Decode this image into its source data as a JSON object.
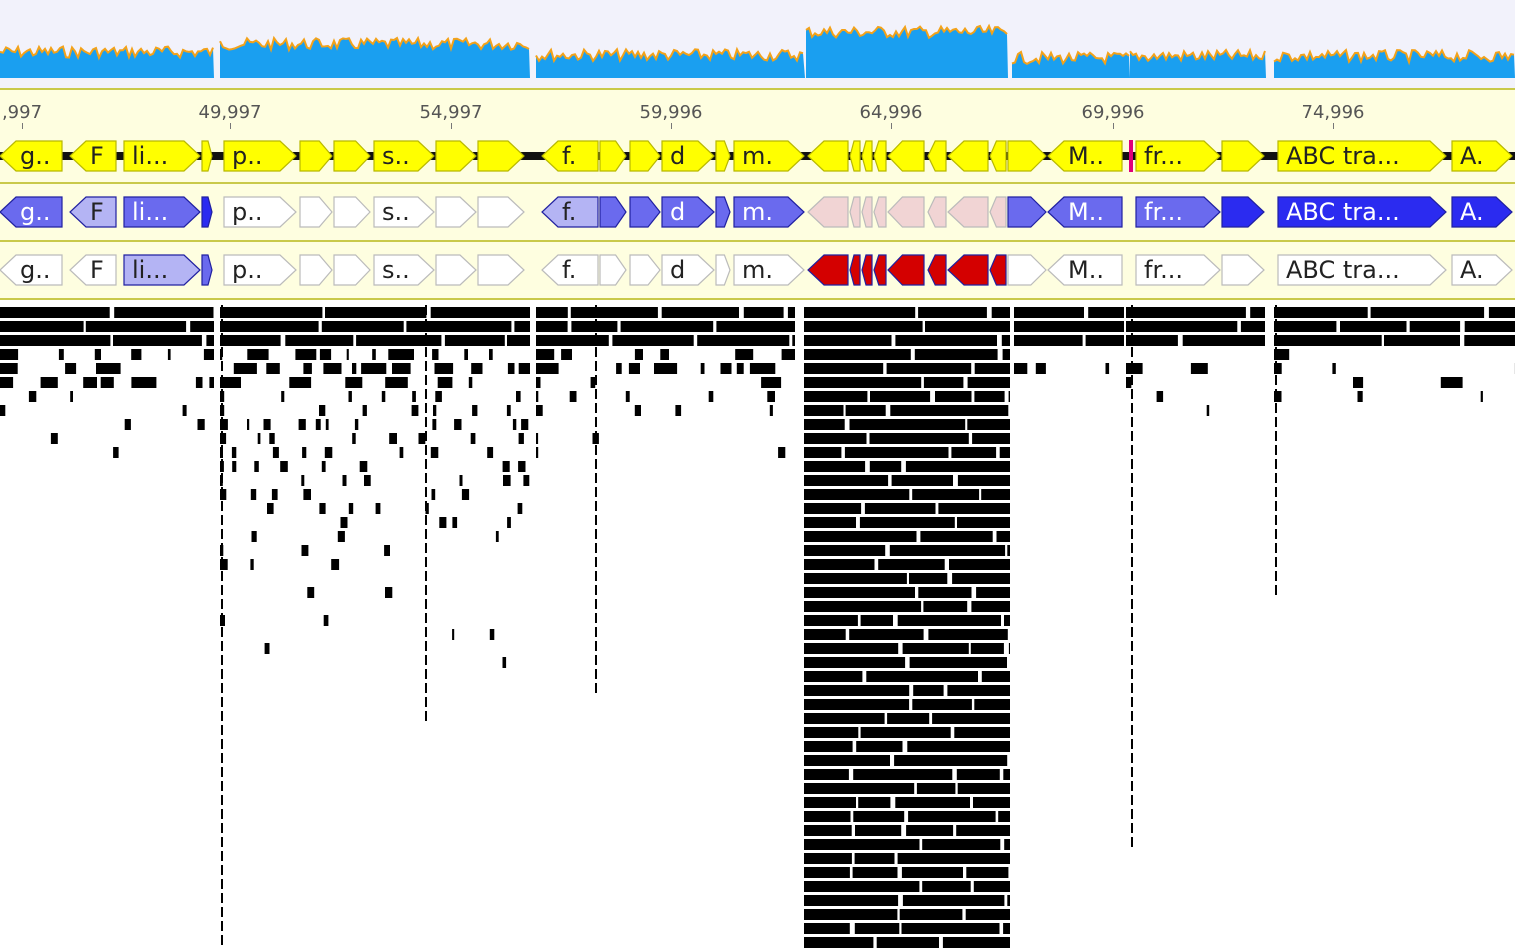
{
  "ruler": {
    "ticks": [
      {
        "label": ",997",
        "pos": 22
      },
      {
        "label": "49,997",
        "pos": 230
      },
      {
        "label": "54,997",
        "pos": 451
      },
      {
        "label": "59,996",
        "pos": 671
      },
      {
        "label": "64,996",
        "pos": 891
      },
      {
        "label": "69,996",
        "pos": 1113
      },
      {
        "label": "74,996",
        "pos": 1333
      }
    ]
  },
  "colors": {
    "coverage_fill": "#1a9ff0",
    "coverage_edge": "#f3a21a",
    "gene_yellow": "#ffff00",
    "gene_blue_dark": "#2b2bf0",
    "gene_blue_mid": "#6a6aee",
    "gene_blue_light": "#b4b4f4",
    "gene_red": "#d40000",
    "gene_pink": "#f1d4d4",
    "gene_white": "#ffffff"
  },
  "tracks": {
    "track1": {
      "genes": [
        {
          "label": "g..",
          "x": 0,
          "w": 62,
          "dir": "L",
          "color": "yellow"
        },
        {
          "label": "F",
          "x": 70,
          "w": 46,
          "dir": "L",
          "color": "yellow"
        },
        {
          "label": "li...",
          "x": 124,
          "w": 76,
          "dir": "R",
          "color": "yellow"
        },
        {
          "label": "",
          "x": 202,
          "w": 10,
          "dir": "R",
          "color": "yellow"
        },
        {
          "label": "p..",
          "x": 224,
          "w": 72,
          "dir": "R",
          "color": "yellow"
        },
        {
          "label": "",
          "x": 300,
          "w": 32,
          "dir": "R",
          "color": "yellow"
        },
        {
          "label": "",
          "x": 334,
          "w": 36,
          "dir": "R",
          "color": "yellow"
        },
        {
          "label": "s..",
          "x": 374,
          "w": 60,
          "dir": "R",
          "color": "yellow"
        },
        {
          "label": "",
          "x": 436,
          "w": 40,
          "dir": "R",
          "color": "yellow"
        },
        {
          "label": "",
          "x": 478,
          "w": 46,
          "dir": "R",
          "color": "yellow"
        },
        {
          "label": "f.",
          "x": 542,
          "w": 56,
          "dir": "L",
          "color": "yellow"
        },
        {
          "label": "",
          "x": 600,
          "w": 26,
          "dir": "R",
          "color": "yellow"
        },
        {
          "label": "",
          "x": 630,
          "w": 30,
          "dir": "R",
          "color": "yellow"
        },
        {
          "label": "d",
          "x": 662,
          "w": 52,
          "dir": "R",
          "color": "yellow"
        },
        {
          "label": "",
          "x": 716,
          "w": 14,
          "dir": "R",
          "color": "yellow"
        },
        {
          "label": "m.",
          "x": 734,
          "w": 70,
          "dir": "R",
          "color": "yellow"
        },
        {
          "label": "",
          "x": 808,
          "w": 40,
          "dir": "L",
          "color": "yellow"
        },
        {
          "label": "",
          "x": 850,
          "w": 10,
          "dir": "L",
          "color": "yellow"
        },
        {
          "label": "",
          "x": 862,
          "w": 10,
          "dir": "L",
          "color": "yellow"
        },
        {
          "label": "",
          "x": 874,
          "w": 12,
          "dir": "L",
          "color": "yellow"
        },
        {
          "label": "",
          "x": 888,
          "w": 36,
          "dir": "L",
          "color": "yellow"
        },
        {
          "label": "",
          "x": 928,
          "w": 18,
          "dir": "L",
          "color": "yellow"
        },
        {
          "label": "",
          "x": 948,
          "w": 40,
          "dir": "L",
          "color": "yellow"
        },
        {
          "label": "",
          "x": 990,
          "w": 16,
          "dir": "L",
          "color": "yellow"
        },
        {
          "label": "",
          "x": 1008,
          "w": 38,
          "dir": "R",
          "color": "yellow"
        },
        {
          "label": "M..",
          "x": 1048,
          "w": 74,
          "dir": "L",
          "color": "yellow"
        },
        {
          "label": "fr...",
          "x": 1136,
          "w": 84,
          "dir": "R",
          "color": "yellow"
        },
        {
          "label": "",
          "x": 1222,
          "w": 42,
          "dir": "R",
          "color": "yellow"
        },
        {
          "label": "ABC tra...",
          "x": 1278,
          "w": 168,
          "dir": "R",
          "color": "yellow"
        },
        {
          "label": "A.",
          "x": 1452,
          "w": 60,
          "dir": "R",
          "color": "yellow"
        }
      ]
    },
    "track2": {
      "genes": [
        {
          "label": "g..",
          "x": 0,
          "w": 62,
          "dir": "L",
          "color": "blue_mid"
        },
        {
          "label": "F",
          "x": 70,
          "w": 46,
          "dir": "L",
          "color": "blue_light"
        },
        {
          "label": "li...",
          "x": 124,
          "w": 76,
          "dir": "R",
          "color": "blue_mid"
        },
        {
          "label": "",
          "x": 202,
          "w": 10,
          "dir": "R",
          "color": "blue_dark"
        },
        {
          "label": "p..",
          "x": 224,
          "w": 72,
          "dir": "R",
          "color": "white"
        },
        {
          "label": "",
          "x": 300,
          "w": 32,
          "dir": "R",
          "color": "white"
        },
        {
          "label": "",
          "x": 334,
          "w": 36,
          "dir": "R",
          "color": "white"
        },
        {
          "label": "s..",
          "x": 374,
          "w": 60,
          "dir": "R",
          "color": "white"
        },
        {
          "label": "",
          "x": 436,
          "w": 40,
          "dir": "R",
          "color": "white"
        },
        {
          "label": "",
          "x": 478,
          "w": 46,
          "dir": "R",
          "color": "white"
        },
        {
          "label": "f.",
          "x": 542,
          "w": 56,
          "dir": "L",
          "color": "blue_light"
        },
        {
          "label": "",
          "x": 600,
          "w": 26,
          "dir": "R",
          "color": "blue_mid"
        },
        {
          "label": "",
          "x": 630,
          "w": 30,
          "dir": "R",
          "color": "blue_mid"
        },
        {
          "label": "d",
          "x": 662,
          "w": 52,
          "dir": "R",
          "color": "blue_mid"
        },
        {
          "label": "",
          "x": 716,
          "w": 14,
          "dir": "R",
          "color": "blue_mid"
        },
        {
          "label": "m.",
          "x": 734,
          "w": 70,
          "dir": "R",
          "color": "blue_mid"
        },
        {
          "label": "",
          "x": 808,
          "w": 40,
          "dir": "L",
          "color": "pink"
        },
        {
          "label": "",
          "x": 850,
          "w": 10,
          "dir": "L",
          "color": "pink"
        },
        {
          "label": "",
          "x": 862,
          "w": 10,
          "dir": "L",
          "color": "pink"
        },
        {
          "label": "",
          "x": 874,
          "w": 12,
          "dir": "L",
          "color": "pink"
        },
        {
          "label": "",
          "x": 888,
          "w": 36,
          "dir": "L",
          "color": "pink"
        },
        {
          "label": "",
          "x": 928,
          "w": 18,
          "dir": "L",
          "color": "pink"
        },
        {
          "label": "",
          "x": 948,
          "w": 40,
          "dir": "L",
          "color": "pink"
        },
        {
          "label": "",
          "x": 990,
          "w": 16,
          "dir": "L",
          "color": "pink"
        },
        {
          "label": "",
          "x": 1008,
          "w": 38,
          "dir": "R",
          "color": "blue_mid"
        },
        {
          "label": "M..",
          "x": 1048,
          "w": 74,
          "dir": "L",
          "color": "blue_mid"
        },
        {
          "label": "fr...",
          "x": 1136,
          "w": 84,
          "dir": "R",
          "color": "blue_mid"
        },
        {
          "label": "",
          "x": 1222,
          "w": 42,
          "dir": "R",
          "color": "blue_dark"
        },
        {
          "label": "ABC tra...",
          "x": 1278,
          "w": 168,
          "dir": "R",
          "color": "blue_dark"
        },
        {
          "label": "A.",
          "x": 1452,
          "w": 60,
          "dir": "R",
          "color": "blue_dark"
        }
      ]
    },
    "track3": {
      "genes": [
        {
          "label": "g..",
          "x": 0,
          "w": 62,
          "dir": "L",
          "color": "white"
        },
        {
          "label": "F",
          "x": 70,
          "w": 46,
          "dir": "L",
          "color": "white"
        },
        {
          "label": "li...",
          "x": 124,
          "w": 76,
          "dir": "R",
          "color": "blue_light"
        },
        {
          "label": "",
          "x": 202,
          "w": 10,
          "dir": "R",
          "color": "blue_mid"
        },
        {
          "label": "p..",
          "x": 224,
          "w": 72,
          "dir": "R",
          "color": "white"
        },
        {
          "label": "",
          "x": 300,
          "w": 32,
          "dir": "R",
          "color": "white"
        },
        {
          "label": "",
          "x": 334,
          "w": 36,
          "dir": "R",
          "color": "white"
        },
        {
          "label": "s..",
          "x": 374,
          "w": 60,
          "dir": "R",
          "color": "white"
        },
        {
          "label": "",
          "x": 436,
          "w": 40,
          "dir": "R",
          "color": "white"
        },
        {
          "label": "",
          "x": 478,
          "w": 46,
          "dir": "R",
          "color": "white"
        },
        {
          "label": "f.",
          "x": 542,
          "w": 56,
          "dir": "L",
          "color": "white"
        },
        {
          "label": "",
          "x": 600,
          "w": 26,
          "dir": "R",
          "color": "white"
        },
        {
          "label": "",
          "x": 630,
          "w": 30,
          "dir": "R",
          "color": "white"
        },
        {
          "label": "d",
          "x": 662,
          "w": 52,
          "dir": "R",
          "color": "white"
        },
        {
          "label": "",
          "x": 716,
          "w": 14,
          "dir": "R",
          "color": "white"
        },
        {
          "label": "m.",
          "x": 734,
          "w": 70,
          "dir": "R",
          "color": "white"
        },
        {
          "label": "",
          "x": 808,
          "w": 40,
          "dir": "L",
          "color": "red"
        },
        {
          "label": "",
          "x": 850,
          "w": 10,
          "dir": "L",
          "color": "red"
        },
        {
          "label": "",
          "x": 862,
          "w": 10,
          "dir": "L",
          "color": "red"
        },
        {
          "label": "",
          "x": 874,
          "w": 12,
          "dir": "L",
          "color": "red"
        },
        {
          "label": "",
          "x": 888,
          "w": 36,
          "dir": "L",
          "color": "red"
        },
        {
          "label": "",
          "x": 928,
          "w": 18,
          "dir": "L",
          "color": "red"
        },
        {
          "label": "",
          "x": 948,
          "w": 40,
          "dir": "L",
          "color": "red"
        },
        {
          "label": "",
          "x": 990,
          "w": 16,
          "dir": "L",
          "color": "red"
        },
        {
          "label": "",
          "x": 1008,
          "w": 38,
          "dir": "R",
          "color": "white"
        },
        {
          "label": "M..",
          "x": 1048,
          "w": 74,
          "dir": "L",
          "color": "white"
        },
        {
          "label": "fr...",
          "x": 1136,
          "w": 84,
          "dir": "R",
          "color": "white"
        },
        {
          "label": "",
          "x": 1222,
          "w": 42,
          "dir": "R",
          "color": "white"
        },
        {
          "label": "ABC tra...",
          "x": 1278,
          "w": 168,
          "dir": "R",
          "color": "white"
        },
        {
          "label": "A.",
          "x": 1452,
          "w": 60,
          "dir": "R",
          "color": "white"
        }
      ]
    }
  }
}
